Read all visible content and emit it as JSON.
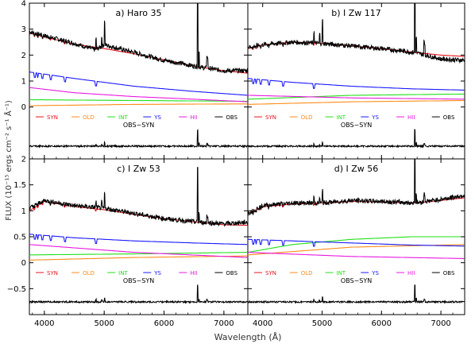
{
  "figure": {
    "ylabel": "FLUX (10⁻¹⁵ ergs cm⁻² s⁻¹ Å⁻¹)",
    "xlabel": "Wavelength (Å)"
  },
  "legend": [
    {
      "label": "SYN",
      "color": "#e8141c"
    },
    {
      "label": "OLD",
      "color": "#ff8c1a"
    },
    {
      "label": "INT",
      "color": "#22e01a"
    },
    {
      "label": "YS",
      "color": "#1a1aff"
    },
    {
      "label": "HII",
      "color": "#e81ae0"
    },
    {
      "label": "OBS",
      "color": "#000000"
    }
  ],
  "residual_label": "OBS−SYN",
  "axes": {
    "x_ticks": [
      "4000",
      "5000",
      "6000",
      "7000"
    ],
    "y_ticks_top": [
      "0",
      "1",
      "2",
      "3",
      "4"
    ],
    "y_ticks_bottom": [
      "−0.5",
      "0",
      "0.5",
      "1",
      "1.5",
      "2"
    ]
  },
  "chart_data": [
    {
      "type": "line",
      "panel": "a) Haro 35",
      "xlim": [
        3750,
        7400
      ],
      "ylim": [
        -2.0,
        4.0
      ],
      "series": [
        {
          "name": "OBS",
          "x": [
            3750,
            4000,
            4500,
            4860,
            5000,
            5500,
            6000,
            6563,
            7000,
            7400
          ],
          "y": [
            2.9,
            2.75,
            2.45,
            2.2,
            2.4,
            2.1,
            1.8,
            1.55,
            1.4,
            1.4
          ]
        },
        {
          "name": "SYN",
          "x": [
            3750,
            4000,
            4500,
            5000,
            5500,
            6000,
            6563,
            7000,
            7400
          ],
          "y": [
            2.85,
            2.7,
            2.42,
            2.25,
            2.05,
            1.82,
            1.55,
            1.4,
            1.3
          ]
        },
        {
          "name": "YS",
          "x": [
            3750,
            4500,
            5500,
            6500,
            7400
          ],
          "y": [
            1.35,
            1.1,
            0.8,
            0.6,
            0.45
          ]
        },
        {
          "name": "HII",
          "x": [
            3750,
            4500,
            5500,
            6500,
            7400
          ],
          "y": [
            0.75,
            0.55,
            0.4,
            0.3,
            0.2
          ]
        },
        {
          "name": "INT",
          "x": [
            3750,
            5500,
            7400
          ],
          "y": [
            0.28,
            0.25,
            0.22
          ]
        },
        {
          "name": "OLD",
          "x": [
            3750,
            5500,
            7400
          ],
          "y": [
            0.05,
            0.1,
            0.12
          ]
        }
      ]
    },
    {
      "type": "line",
      "panel": "b) I Zw 117",
      "xlim": [
        3750,
        7400
      ],
      "ylim": [
        -2.0,
        4.0
      ],
      "series": [
        {
          "name": "OBS",
          "x": [
            3750,
            4000,
            4500,
            5000,
            5500,
            6000,
            6563,
            7000,
            7400
          ],
          "y": [
            2.3,
            2.4,
            2.5,
            2.45,
            2.35,
            2.25,
            2.1,
            1.85,
            1.8
          ]
        },
        {
          "name": "SYN",
          "x": [
            3750,
            4000,
            4500,
            5000,
            5500,
            6000,
            6563,
            7000,
            7400
          ],
          "y": [
            2.25,
            2.4,
            2.5,
            2.45,
            2.35,
            2.25,
            2.1,
            2.0,
            1.95
          ]
        },
        {
          "name": "YS",
          "x": [
            3750,
            4500,
            5500,
            6500,
            7400
          ],
          "y": [
            1.1,
            0.95,
            0.8,
            0.7,
            0.65
          ]
        },
        {
          "name": "INT",
          "x": [
            3750,
            5500,
            7400
          ],
          "y": [
            0.3,
            0.45,
            0.5
          ]
        },
        {
          "name": "HII",
          "x": [
            3750,
            5500,
            7400
          ],
          "y": [
            0.45,
            0.35,
            0.3
          ]
        },
        {
          "name": "OLD",
          "x": [
            3750,
            5500,
            7400
          ],
          "y": [
            0.1,
            0.2,
            0.25
          ]
        }
      ]
    },
    {
      "type": "line",
      "panel": "c) I Zw 53",
      "xlim": [
        3750,
        7400
      ],
      "ylim": [
        -1.0,
        2.0
      ],
      "series": [
        {
          "name": "OBS",
          "x": [
            3750,
            4000,
            4500,
            5000,
            5500,
            6000,
            6563,
            7000,
            7400
          ],
          "y": [
            1.05,
            1.2,
            1.1,
            1.05,
            0.95,
            0.85,
            0.78,
            0.75,
            0.78
          ]
        },
        {
          "name": "SYN",
          "x": [
            3750,
            4000,
            4500,
            5000,
            5500,
            6000,
            6563,
            7000,
            7400
          ],
          "y": [
            1.0,
            1.18,
            1.08,
            1.02,
            0.93,
            0.85,
            0.78,
            0.73,
            0.72
          ]
        },
        {
          "name": "YS",
          "x": [
            3750,
            4500,
            5500,
            6500,
            7400
          ],
          "y": [
            0.55,
            0.48,
            0.42,
            0.38,
            0.35
          ]
        },
        {
          "name": "HII",
          "x": [
            3750,
            5500,
            7400
          ],
          "y": [
            0.35,
            0.2,
            0.1
          ]
        },
        {
          "name": "INT",
          "x": [
            3750,
            5500,
            7400
          ],
          "y": [
            0.15,
            0.17,
            0.2
          ]
        },
        {
          "name": "OLD",
          "x": [
            3750,
            5500,
            7400
          ],
          "y": [
            0.05,
            0.1,
            0.13
          ]
        }
      ]
    },
    {
      "type": "line",
      "panel": "d) I Zw 56",
      "xlim": [
        3750,
        7400
      ],
      "ylim": [
        -1.0,
        2.0
      ],
      "series": [
        {
          "name": "OBS",
          "x": [
            3750,
            4000,
            4500,
            5000,
            5500,
            6000,
            6563,
            7000,
            7400
          ],
          "y": [
            0.95,
            1.1,
            1.15,
            1.15,
            1.2,
            1.18,
            1.15,
            1.22,
            1.3
          ]
        },
        {
          "name": "SYN",
          "x": [
            3750,
            4000,
            4500,
            5000,
            5500,
            6000,
            6563,
            7000,
            7400
          ],
          "y": [
            0.95,
            1.08,
            1.13,
            1.15,
            1.18,
            1.17,
            1.15,
            1.2,
            1.25
          ]
        },
        {
          "name": "INT",
          "x": [
            3750,
            4500,
            5500,
            6500,
            7400
          ],
          "y": [
            0.2,
            0.35,
            0.45,
            0.5,
            0.5
          ]
        },
        {
          "name": "YS",
          "x": [
            3750,
            4500,
            5500,
            6500,
            7400
          ],
          "y": [
            0.45,
            0.42,
            0.38,
            0.34,
            0.32
          ]
        },
        {
          "name": "OLD",
          "x": [
            3750,
            5500,
            7400
          ],
          "y": [
            0.15,
            0.3,
            0.35
          ]
        },
        {
          "name": "HII",
          "x": [
            3750,
            5500,
            7400
          ],
          "y": [
            0.2,
            0.12,
            0.08
          ]
        }
      ]
    }
  ]
}
